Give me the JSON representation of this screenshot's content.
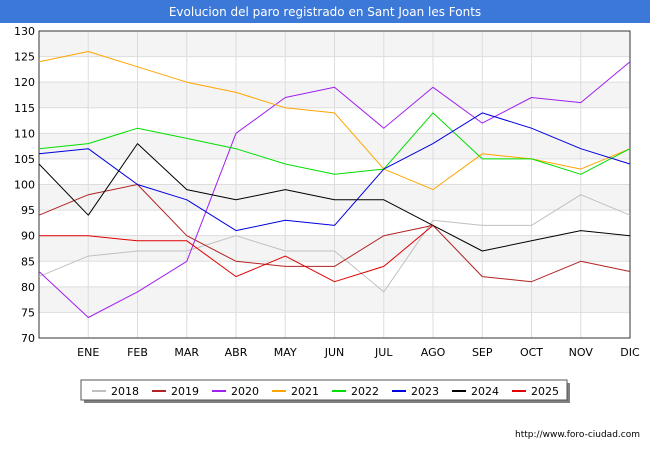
{
  "chart_data": {
    "type": "line",
    "title": "Evolucion del paro registrado en Sant Joan les Fonts",
    "xlabel": "",
    "ylabel": "",
    "categories": [
      "",
      "ENE",
      "FEB",
      "MAR",
      "ABR",
      "MAY",
      "JUN",
      "JUL",
      "AGO",
      "SEP",
      "OCT",
      "NOV",
      "DIC"
    ],
    "ylim": [
      70,
      130
    ],
    "yticks": [
      70,
      75,
      80,
      85,
      90,
      95,
      100,
      105,
      110,
      115,
      120,
      125,
      130
    ],
    "grid": true,
    "legend_position": "bottom",
    "series": [
      {
        "name": "2018",
        "color": "#c0c0c0",
        "values": [
          82,
          86,
          87,
          87,
          90,
          87,
          87,
          79,
          93,
          92,
          92,
          98,
          94
        ]
      },
      {
        "name": "2019",
        "color": "#b22222",
        "values": [
          94,
          98,
          100,
          90,
          85,
          84,
          84,
          90,
          92,
          82,
          81,
          85,
          83
        ]
      },
      {
        "name": "2020",
        "color": "#a020f0",
        "values": [
          83,
          74,
          79,
          85,
          110,
          117,
          119,
          111,
          119,
          112,
          117,
          116,
          124
        ]
      },
      {
        "name": "2021",
        "color": "#ffa500",
        "values": [
          124,
          126,
          123,
          120,
          118,
          115,
          114,
          103,
          99,
          106,
          105,
          103,
          107
        ]
      },
      {
        "name": "2022",
        "color": "#00e000",
        "values": [
          107,
          108,
          111,
          109,
          107,
          104,
          102,
          103,
          114,
          105,
          105,
          102,
          107
        ]
      },
      {
        "name": "2023",
        "color": "#0000e0",
        "values": [
          106,
          107,
          100,
          97,
          91,
          93,
          92,
          103,
          108,
          114,
          111,
          107,
          104
        ]
      },
      {
        "name": "2024",
        "color": "#000000",
        "values": [
          104,
          94,
          108,
          99,
          97,
          99,
          97,
          97,
          92,
          87,
          89,
          91,
          90
        ]
      },
      {
        "name": "2025",
        "color": "#e00000",
        "values": [
          90,
          90,
          89,
          89,
          82,
          86,
          81,
          84,
          92,
          null,
          null,
          null,
          null
        ]
      }
    ]
  },
  "footer": {
    "url": "http://www.foro-ciudad.com"
  }
}
